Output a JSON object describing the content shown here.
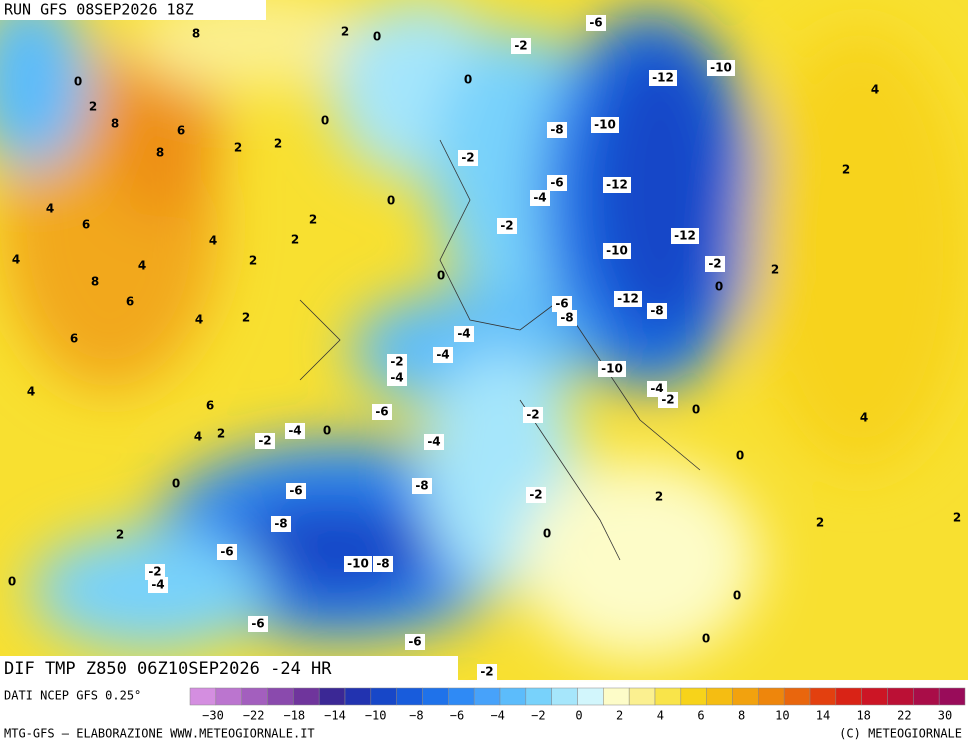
{
  "header": {
    "run": "RUN GFS 08SEP2026 18Z"
  },
  "footer": {
    "product": "DIF TMP Z850 06Z10SEP2026 -24 HR",
    "source": "DATI NCEP GFS 0.25°",
    "credit": "MTG-GFS — ELABORAZIONE WWW.METEOGIORNALE.IT",
    "copyright": "(C) METEOGIORNALE"
  },
  "colorbar": {
    "colors": [
      "#d48ee0",
      "#bb75cf",
      "#a35fbe",
      "#8a4aad",
      "#6f359c",
      "#3b2895",
      "#2233b0",
      "#1747c8",
      "#185cdc",
      "#1f72ea",
      "#2f8af5",
      "#47a2fa",
      "#5cbcfb",
      "#78d2fb",
      "#a6e6fb",
      "#d2f6fc",
      "#fdfcc8",
      "#fbf090",
      "#f9e44a",
      "#f7d31a",
      "#f5bd12",
      "#f2a20e",
      "#ee860c",
      "#e9660d",
      "#e3400f",
      "#d92316",
      "#cc1525",
      "#bb1035",
      "#a90d48",
      "#990c5a"
    ],
    "labels": [
      "−30",
      "−22",
      "−18",
      "−14",
      "−10",
      "−8",
      "−6",
      "−4",
      "−2",
      "0",
      "2",
      "4",
      "6",
      "8",
      "10",
      "14",
      "18",
      "22",
      "30"
    ]
  },
  "map": {
    "labels": [
      8,
      2,
      0,
      -6,
      -2,
      0,
      0,
      -12,
      -10,
      4,
      2,
      8,
      6,
      0,
      -8,
      -10,
      8,
      2,
      2,
      -2,
      2,
      -6,
      -12,
      -4,
      0,
      4,
      6,
      2,
      -2,
      -12,
      4,
      2,
      -10,
      -2,
      4,
      2,
      4,
      2,
      0,
      8,
      0,
      -12,
      -6,
      -8,
      -8,
      6,
      4,
      2,
      -4,
      6,
      -4,
      -2,
      -4,
      -10,
      -4,
      -2,
      4,
      6,
      -6,
      -2,
      0,
      4,
      -4,
      0,
      4,
      2,
      -2,
      -4,
      0,
      0,
      -8,
      -6,
      -2,
      2,
      -8,
      2,
      2,
      2,
      0,
      -6,
      -10,
      -8,
      -2,
      -4,
      0,
      0,
      -6,
      -6,
      0,
      -2
    ]
  }
}
